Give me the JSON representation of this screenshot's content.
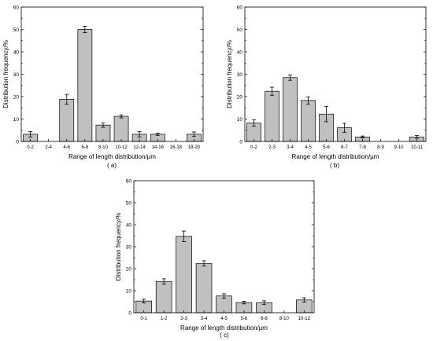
{
  "chart_data": [
    {
      "type": "bar",
      "panel_label": "( a)",
      "xlabel": "Range of length distribution/μm",
      "ylabel": "Distribution frequency/%",
      "ylim": [
        0,
        60
      ],
      "yticks": [
        0,
        10,
        20,
        30,
        40,
        50,
        60
      ],
      "categories": [
        "0-2",
        "2-4",
        "4-6",
        "6-8",
        "8-10",
        "10-12",
        "12-14",
        "14-16",
        "16-18",
        "18-20"
      ],
      "values": [
        3.2,
        0,
        18.8,
        50,
        7.3,
        11.2,
        3.2,
        3.2,
        0,
        3.2
      ],
      "errors": [
        1.2,
        0,
        2.2,
        1.4,
        1.0,
        0.7,
        1.2,
        0.5,
        0,
        1.0
      ],
      "bar_color": "#c0c0c0",
      "grid": false
    },
    {
      "type": "bar",
      "panel_label": "( b)",
      "xlabel": "Range of length distribution/μm",
      "ylabel": "Distribution frequency/%",
      "ylim": [
        0,
        60
      ],
      "yticks": [
        0,
        10,
        20,
        30,
        40,
        50,
        60
      ],
      "categories": [
        "0-2",
        "2-3",
        "3-4",
        "4-5",
        "5-6",
        "6-7",
        "7-8",
        "8-9",
        "9-10",
        "10-11"
      ],
      "values": [
        8.2,
        22.4,
        28.5,
        18.3,
        12.2,
        6.1,
        2.0,
        0,
        0,
        2.0
      ],
      "errors": [
        1.4,
        1.8,
        1.2,
        1.6,
        3.4,
        2.0,
        0.4,
        0,
        0,
        0.6
      ],
      "bar_color": "#c0c0c0",
      "grid": false
    },
    {
      "type": "bar",
      "panel_label": "( c)",
      "xlabel": "Range of length distribution/μm",
      "ylabel": "Distribution frequency/%",
      "ylim": [
        0,
        60
      ],
      "yticks": [
        0,
        10,
        20,
        30,
        40,
        50,
        60
      ],
      "categories": [
        "0-1",
        "1-2",
        "2-3",
        "3-4",
        "4-5",
        "5-6",
        "6-8",
        "8-10",
        "10-12"
      ],
      "values": [
        5.3,
        14.2,
        34.7,
        22.4,
        7.6,
        4.6,
        4.6,
        0,
        5.8
      ],
      "errors": [
        0.8,
        1.2,
        2.4,
        1.2,
        1.0,
        0.6,
        0.8,
        0,
        1.0
      ],
      "bar_color": "#c0c0c0",
      "grid": false
    }
  ]
}
